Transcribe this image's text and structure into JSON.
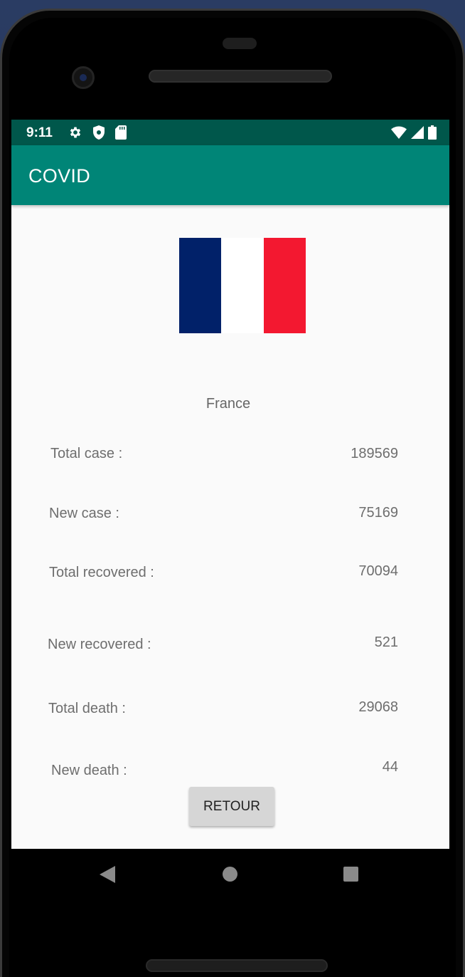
{
  "status_bar": {
    "time": "9:11",
    "icons_left": [
      "gear-icon",
      "shield-icon",
      "sd-card-icon"
    ],
    "icons_right": [
      "wifi-icon",
      "signal-icon",
      "battery-icon"
    ]
  },
  "app_bar": {
    "title": "COVID"
  },
  "flag": {
    "colors": [
      "#012169",
      "#ffffff",
      "#f31830"
    ]
  },
  "country": "France",
  "stats": [
    {
      "label": "Total case :",
      "value": "189569"
    },
    {
      "label": "New case :",
      "value": "75169"
    },
    {
      "label": "Total recovered :",
      "value": "70094"
    },
    {
      "label": "New recovered :",
      "value": "521"
    },
    {
      "label": "Total death :",
      "value": "29068"
    },
    {
      "label": "New death :",
      "value": "44"
    }
  ],
  "button": {
    "label": "RETOUR"
  },
  "nav_bar": {
    "icons": [
      "back-icon",
      "home-icon",
      "recents-icon"
    ]
  }
}
